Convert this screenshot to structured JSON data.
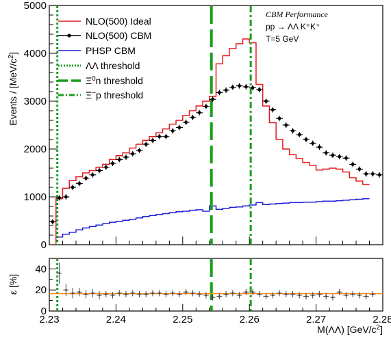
{
  "chart_data": [
    {
      "type": "line",
      "panel": "top",
      "ylabel_parts": {
        "base": "Events / [MeV/c",
        "sup": "2",
        "end": "]"
      },
      "xlim": [
        2.23,
        2.28
      ],
      "ylim": [
        0,
        5000
      ],
      "y_ticks": [
        "0",
        "1000",
        "2000",
        "3000",
        "4000",
        "5000"
      ],
      "legend_placement": "top-left",
      "annotations": {
        "title": "CBM Performance",
        "reaction": "pp → ΛΛ K⁺K⁺",
        "energy": "T=5 GeV"
      },
      "series": [
        {
          "name": "NLO(500) Ideal",
          "style": "histogram",
          "color": "#e31a1c",
          "bin_width": 0.001,
          "x_start": 2.231,
          "values": [
            960,
            1180,
            1340,
            1420,
            1500,
            1550,
            1620,
            1680,
            1780,
            1860,
            1920,
            2020,
            2100,
            2180,
            2260,
            2340,
            2420,
            2520,
            2600,
            2700,
            2800,
            2900,
            3000,
            3100,
            3780,
            3950,
            4100,
            4200,
            4300,
            4220,
            3350,
            2900,
            2550,
            2200,
            2000,
            1880,
            1800,
            1720,
            1660,
            1560,
            1580,
            1600,
            1580,
            1520,
            1400,
            1330,
            1260
          ]
        },
        {
          "name": "NLO(500) CBM",
          "style": "points",
          "color": "#000000",
          "x": [
            2.2305,
            2.2315,
            2.2325,
            2.2335,
            2.2345,
            2.2355,
            2.2365,
            2.2375,
            2.2385,
            2.2395,
            2.2405,
            2.2415,
            2.2425,
            2.2435,
            2.2445,
            2.2455,
            2.2465,
            2.2475,
            2.2485,
            2.2495,
            2.2505,
            2.2515,
            2.2525,
            2.2535,
            2.2545,
            2.2555,
            2.2565,
            2.2575,
            2.2585,
            2.2595,
            2.2605,
            2.2615,
            2.2625,
            2.2635,
            2.2645,
            2.2655,
            2.2665,
            2.2675,
            2.2685,
            2.2695,
            2.2705,
            2.2715,
            2.2725,
            2.2735,
            2.2745,
            2.2755,
            2.2765,
            2.2775,
            2.2785,
            2.2795
          ],
          "y": [
            480,
            980,
            1000,
            1200,
            1280,
            1390,
            1460,
            1550,
            1620,
            1700,
            1780,
            1830,
            1900,
            1970,
            2100,
            2180,
            2260,
            2260,
            2380,
            2450,
            2560,
            2660,
            2760,
            2890,
            3040,
            3180,
            3230,
            3290,
            3320,
            3300,
            3280,
            3240,
            3000,
            2820,
            2640,
            2500,
            2380,
            2300,
            2200,
            2120,
            2040,
            1920,
            1870,
            1840,
            1810,
            1680,
            1580,
            1480,
            1480,
            1460
          ]
        },
        {
          "name": "PHSP CBM",
          "style": "histogram",
          "color": "#1f1fd6",
          "bin_width": 0.001,
          "x_start": 2.231,
          "values": [
            160,
            220,
            260,
            310,
            350,
            380,
            410,
            440,
            470,
            490,
            510,
            530,
            560,
            590,
            610,
            630,
            650,
            670,
            690,
            700,
            720,
            730,
            700,
            810,
            740,
            760,
            780,
            790,
            810,
            830,
            880,
            840,
            850,
            860,
            870,
            880,
            880,
            890,
            890,
            900,
            910,
            910,
            920,
            930,
            940,
            950,
            960
          ]
        }
      ],
      "thresholds": [
        {
          "name": "ΛΛ threshold",
          "x": 2.2312,
          "style": "dotted",
          "color": "#1a9e1a"
        },
        {
          "name_base": "Ξ",
          "name_sup": "0",
          "name_end": "n threshold",
          "x": 2.2543,
          "style": "dashed",
          "color": "#1a9e1a"
        },
        {
          "name_base": "Ξ",
          "name_sup": "−",
          "name_end": "p threshold",
          "x": 2.2602,
          "style": "dashdot",
          "color": "#1a9e1a"
        }
      ]
    },
    {
      "type": "scatter",
      "panel": "bottom",
      "ylabel": "ε [%]",
      "xlabel_parts": {
        "base": "M(ΛΛ) [GeV/c",
        "sup": "2",
        "end": "]"
      },
      "xlim": [
        2.23,
        2.28
      ],
      "ylim": [
        0,
        50
      ],
      "x_ticks": [
        "2.23",
        "2.24",
        "2.25",
        "2.26",
        "2.27",
        "2.28"
      ],
      "y_ticks": [
        "0",
        "20",
        "40"
      ],
      "fit_line": {
        "value": 16.5,
        "color": "#ff8c1a"
      },
      "x": [
        2.2315,
        2.2325,
        2.2335,
        2.2345,
        2.2355,
        2.2365,
        2.2375,
        2.2385,
        2.2395,
        2.2405,
        2.2415,
        2.2425,
        2.2435,
        2.2445,
        2.2455,
        2.2465,
        2.2475,
        2.2485,
        2.2495,
        2.2505,
        2.2515,
        2.2525,
        2.2535,
        2.2545,
        2.2555,
        2.2565,
        2.2575,
        2.2585,
        2.2595,
        2.2605,
        2.2615,
        2.2625,
        2.2635,
        2.2645,
        2.2655,
        2.2665,
        2.2675,
        2.2685,
        2.2695,
        2.2705,
        2.2715,
        2.2725,
        2.2735,
        2.2745,
        2.2755,
        2.2765,
        2.2775,
        2.2785
      ],
      "y": [
        36,
        20,
        17,
        18,
        16,
        17,
        15,
        16,
        15,
        17,
        16,
        17,
        16,
        16,
        17,
        17,
        16,
        17,
        16,
        18,
        17,
        16,
        15,
        13,
        14,
        16,
        17,
        15,
        18,
        18,
        16,
        14,
        15,
        17,
        16,
        16,
        15,
        14,
        15,
        16,
        14,
        13,
        18,
        15,
        16,
        15,
        14,
        16
      ],
      "err": [
        10,
        6,
        5,
        4,
        4,
        4,
        4,
        3,
        3,
        3,
        3,
        3,
        3,
        3,
        3,
        3,
        3,
        3,
        3,
        3,
        3,
        3,
        3,
        3,
        3,
        3,
        3,
        3,
        3,
        3,
        3,
        3,
        3,
        3,
        3,
        3,
        3,
        3,
        3,
        3,
        3,
        3,
        3,
        3,
        3,
        3,
        3,
        3
      ]
    }
  ]
}
